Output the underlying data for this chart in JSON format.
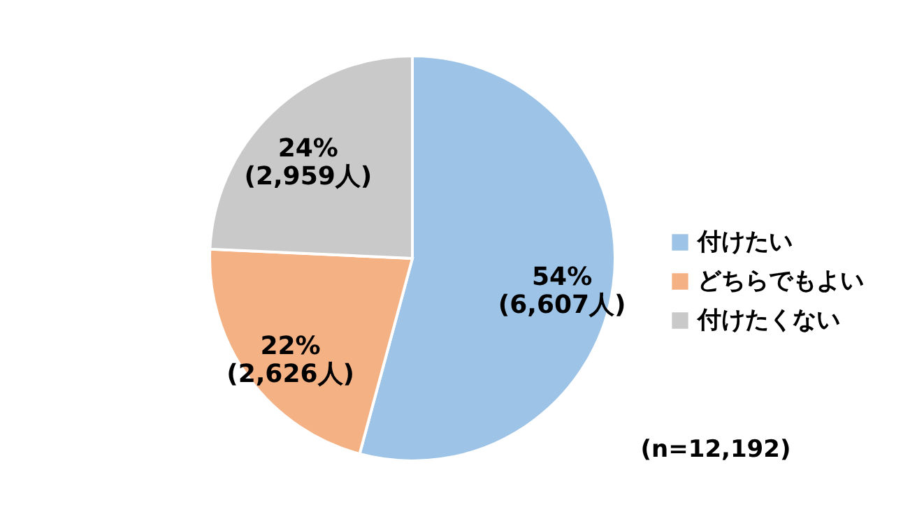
{
  "chart_data": {
    "type": "pie",
    "categories": [
      "付けたい",
      "どちらでもよい",
      "付けたくない"
    ],
    "values": [
      6607,
      2626,
      2959
    ],
    "colors": [
      "#9dc3e6",
      "#f4b183",
      "#c9c9c9"
    ],
    "value_labels": [
      "54%\n(6,607人)",
      "22%\n(2,626人)",
      "24%\n(2,959人)"
    ],
    "legend": "right",
    "annotations": [
      "(n=12,192)"
    ]
  }
}
